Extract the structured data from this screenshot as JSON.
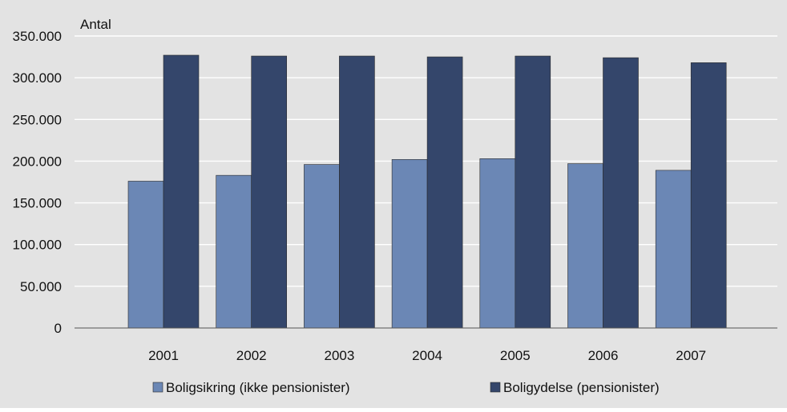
{
  "chart_data": {
    "type": "bar",
    "title": "",
    "xlabel": "",
    "ylabel": "Antal",
    "ylim": [
      0,
      350000
    ],
    "yticks": [
      0,
      50000,
      100000,
      150000,
      200000,
      250000,
      300000,
      350000
    ],
    "ytick_labels": [
      "0",
      "50.000",
      "100.000",
      "150.000",
      "200.000",
      "250.000",
      "300.000",
      "350.000"
    ],
    "categories": [
      "2001",
      "2002",
      "2003",
      "2004",
      "2005",
      "2006",
      "2007"
    ],
    "series": [
      {
        "name": "Boligsikring (ikke pensionister)",
        "color": "#6b87b5",
        "values": [
          176000,
          183000,
          196000,
          202000,
          203000,
          197000,
          189000
        ]
      },
      {
        "name": "Boligydelse (pensionister)",
        "color": "#34466b",
        "values": [
          327000,
          326000,
          326000,
          325000,
          326000,
          324000,
          318000
        ]
      }
    ],
    "grid": true,
    "legend_position": "bottom",
    "background_color": "#e3e3e3"
  }
}
